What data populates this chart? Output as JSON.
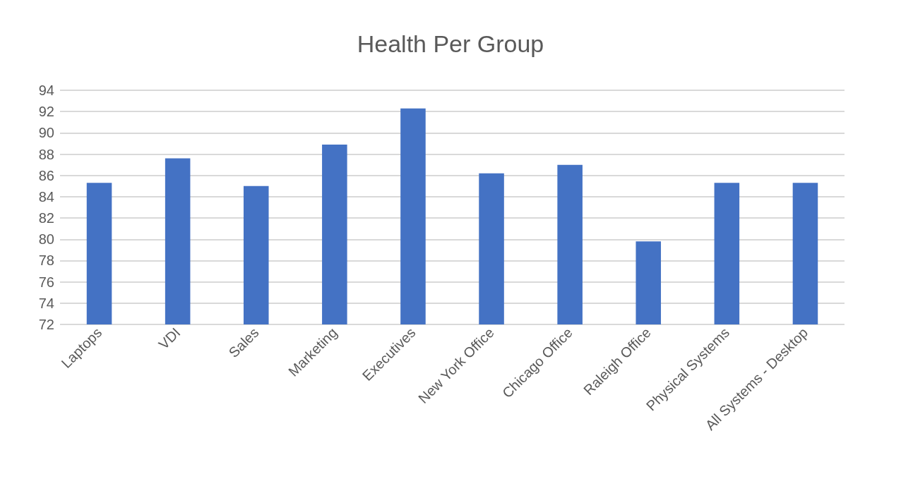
{
  "chart_data": {
    "type": "bar",
    "title": "Health Per Group",
    "categories": [
      "Laptops",
      "VDI",
      "Sales",
      "Marketing",
      "Executives",
      "New York Office",
      "Chicago Office",
      "Raleigh Office",
      "Physical Systems",
      "All Systems - Desktop"
    ],
    "values": [
      85.3,
      87.6,
      85.0,
      88.9,
      92.3,
      86.2,
      87.0,
      79.8,
      85.3,
      85.3
    ],
    "color": "#4472c4",
    "ylim": [
      72,
      94
    ],
    "yticks": [
      72,
      74,
      76,
      78,
      80,
      82,
      84,
      86,
      88,
      90,
      92,
      94
    ],
    "grid": "y"
  }
}
